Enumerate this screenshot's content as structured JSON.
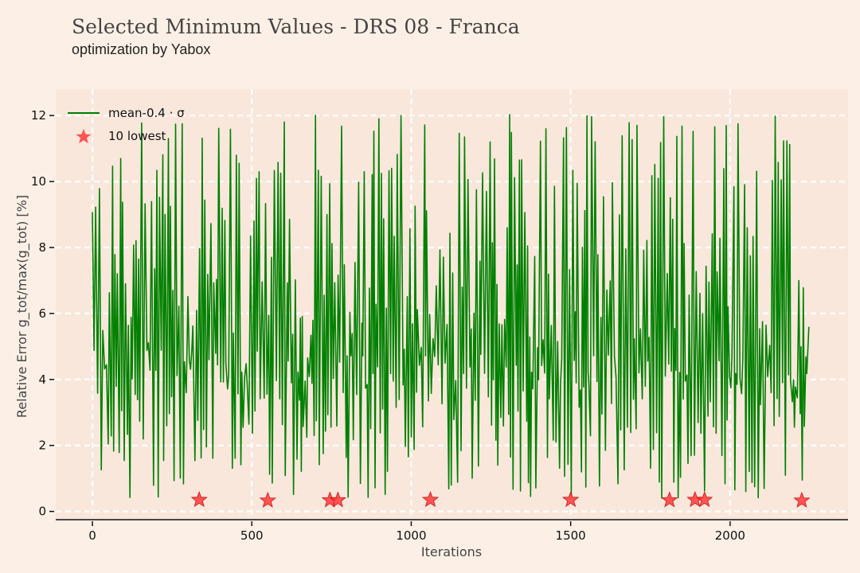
{
  "chart_data": {
    "type": "line",
    "title": "Selected Minimum Values - DRS 08 - Franca",
    "subtitle": "optimization by Yabox",
    "xlabel": "Iterations",
    "ylabel": "Relative Error g_tot/max(g_tot) [%]",
    "xlim": [
      -115,
      2370
    ],
    "ylim": [
      -0.25,
      12.8
    ],
    "x_ticks": [
      0,
      500,
      1000,
      1500,
      2000
    ],
    "x_tick_labels": [
      "0",
      "500",
      "1000",
      "1500",
      "2000"
    ],
    "y_ticks": [
      0,
      2,
      4,
      6,
      8,
      10,
      12
    ],
    "y_tick_labels": [
      "0",
      "2",
      "4",
      "6",
      "8",
      "10",
      "12"
    ],
    "grid": true,
    "legend_position": "top-left",
    "series": [
      {
        "name": "mean-0.4 · σ",
        "color": "#008000",
        "x_range": [
          0,
          2250
        ],
        "y_range": [
          0.3,
          12.1
        ],
        "note_values": "dense oscillating series (~2250 iterations) fluctuating between ~0.4 and ~12"
      },
      {
        "name": "10 lowest",
        "color": "#ff3b3b",
        "marker": "star",
        "x": [
          335,
          550,
          745,
          770,
          1060,
          1500,
          1810,
          1890,
          1920,
          2225
        ],
        "y": [
          0.35,
          0.33,
          0.34,
          0.34,
          0.35,
          0.35,
          0.34,
          0.35,
          0.35,
          0.33
        ]
      }
    ]
  }
}
